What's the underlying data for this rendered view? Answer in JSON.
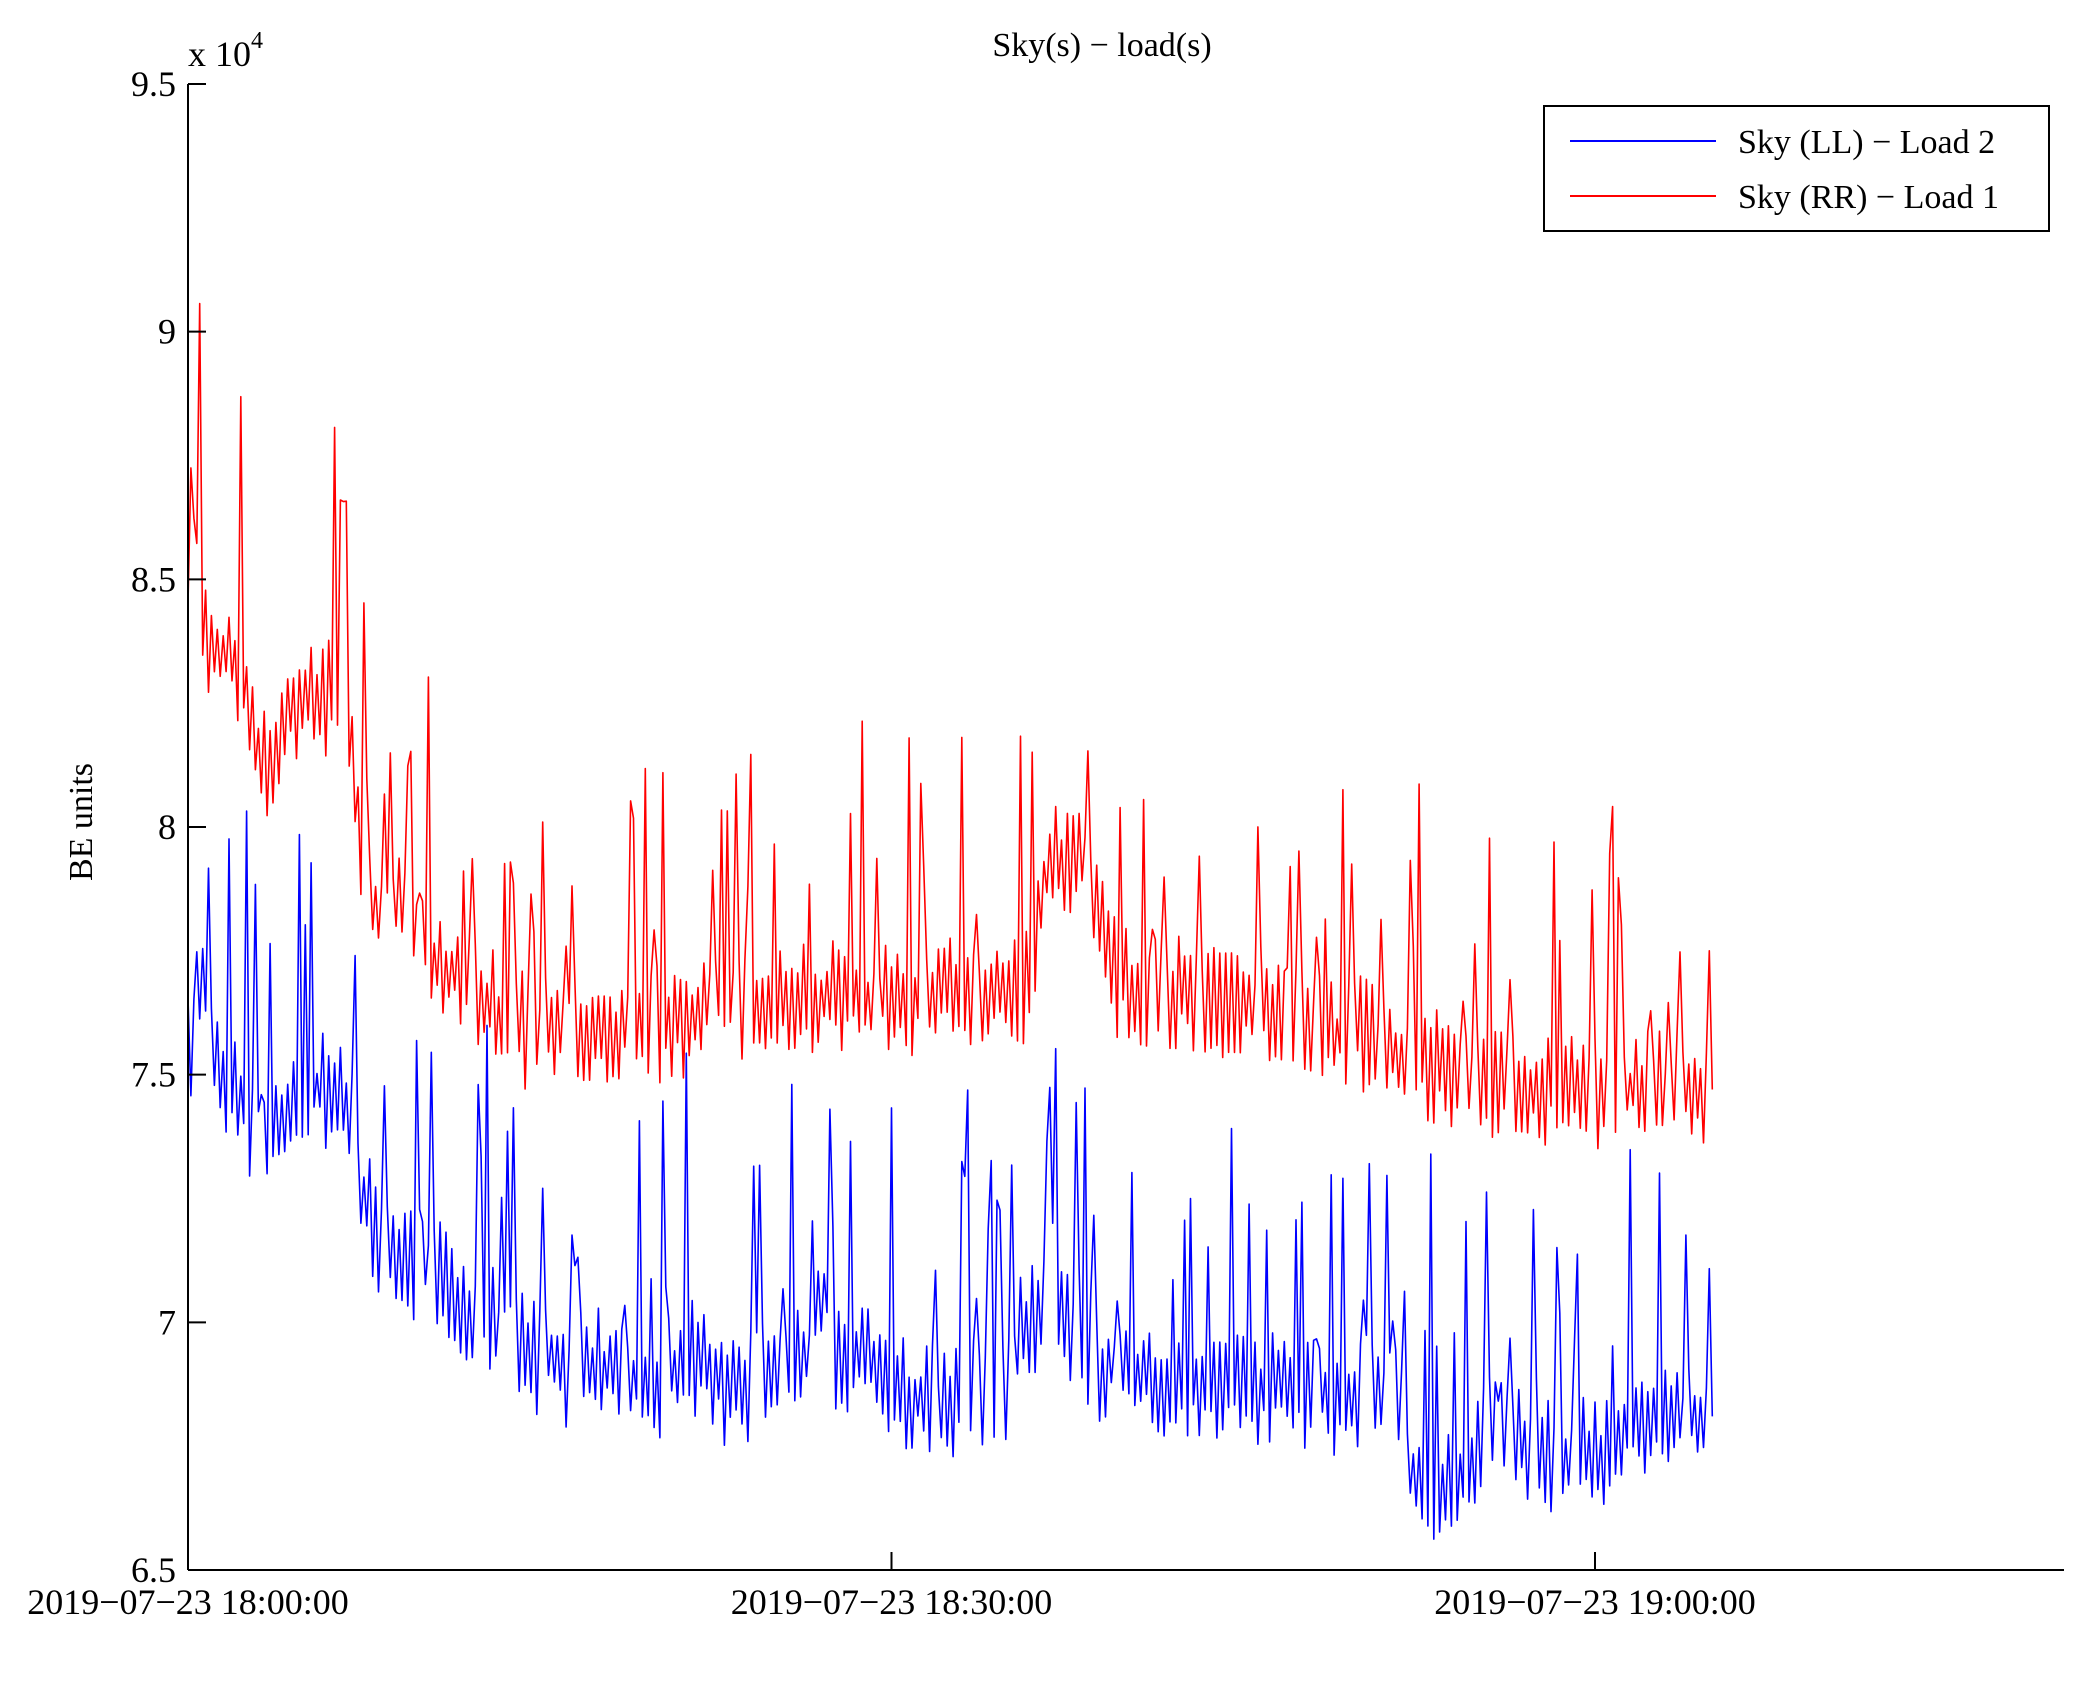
{
  "chart_data": {
    "type": "line",
    "title": "Sky(s) − load(s)",
    "ylabel": "BE units",
    "xlabel": "",
    "y_exponent_label": "x 10",
    "y_exponent_power": "4",
    "ylim": [
      65000,
      95000
    ],
    "y_ticks": [
      65000,
      70000,
      75000,
      80000,
      85000,
      90000,
      95000
    ],
    "y_tick_labels": [
      "6.5",
      "7",
      "7.5",
      "8",
      "8.5",
      "9",
      "9.5"
    ],
    "x_range_minutes": [
      0,
      80
    ],
    "x_ticks_minutes": [
      0,
      30,
      60
    ],
    "x_tick_labels": [
      "2019−07−23 18:00:00",
      "2019−07−23 18:30:00",
      "2019−07−23 19:00:00"
    ],
    "legend_position": "top-right",
    "sample_step_minutes": 0.5,
    "series": [
      {
        "name": "Sky (LL) − Load 2",
        "color": "#0000ff",
        "x_start_minutes": 0,
        "values": [
          75600,
          75400,
          75200,
          75000,
          74800,
          74300,
          73700,
          73500,
          74200,
          74700,
          74600,
          74700,
          74700,
          74700,
          74000,
          72500,
          71700,
          71800,
          71200,
          71200,
          71200,
          71200,
          70800,
          70400,
          70200,
          70100,
          70000,
          69800,
          69600,
          69300,
          69300,
          69400,
          69100,
          69000,
          69100,
          69100,
          69000,
          68900,
          68800,
          68800,
          68800,
          68900,
          69200,
          69300,
          69200,
          69000,
          68600,
          68600,
          68600,
          69100,
          69100,
          69200,
          69200,
          69300,
          69300,
          69300,
          69300,
          69300,
          69300,
          69300,
          68600,
          68600,
          68500,
          68500,
          68400,
          68400,
          68400,
          68500,
          68500,
          68400,
          68800,
          69800,
          70100,
          70100,
          70100,
          70000,
          69900,
          69400,
          69100,
          69100,
          68900,
          68900,
          68900,
          68900,
          68900,
          68700,
          68800,
          68800,
          68800,
          68800,
          68700,
          68700,
          68700,
          68700,
          68600,
          68500,
          68500,
          68500,
          68500,
          68500,
          68500,
          68600,
          68600,
          68600,
          67000,
          66800,
          66800,
          66800,
          66800,
          66800,
          67500,
          68200,
          67800,
          67600,
          67600,
          67700,
          67400,
          67300,
          67300,
          67300,
          67300,
          67300,
          67300,
          68000,
          68100,
          68100,
          68100,
          68100,
          68100,
          68100,
          68100
        ]
      },
      {
        "name": "Sky (RR) − Load 1",
        "color": "#ff0000",
        "x_start_minutes": 0,
        "values": [
          84200,
          84000,
          83700,
          83500,
          83300,
          82600,
          81400,
          81300,
          82300,
          82600,
          82500,
          82500,
          82600,
          82600,
          81500,
          79200,
          78300,
          78300,
          78400,
          78400,
          77600,
          77300,
          77100,
          77000,
          76800,
          76600,
          76400,
          76100,
          75900,
          75900,
          75900,
          75800,
          75800,
          75800,
          75800,
          75900,
          75900,
          75900,
          76000,
          76000,
          76000,
          76000,
          76000,
          76200,
          76600,
          76800,
          76400,
          76400,
          76400,
          76400,
          76400,
          76400,
          76500,
          76500,
          76500,
          76500,
          76500,
          76500,
          76500,
          76500,
          76500,
          76500,
          76500,
          76700,
          76700,
          76700,
          76700,
          76700,
          76700,
          76700,
          76700,
          76700,
          76700,
          79000,
          79300,
          79300,
          79300,
          79000,
          78500,
          77000,
          76800,
          76800,
          76700,
          76700,
          76700,
          76700,
          76600,
          76600,
          76500,
          76400,
          76400,
          76400,
          76400,
          76400,
          76300,
          76000,
          75800,
          75800,
          75800,
          75800,
          75800,
          75700,
          75500,
          75400,
          75300,
          75200,
          75200,
          75100,
          75100,
          75000,
          75000,
          74900,
          74800,
          74700,
          74700,
          74700,
          74700,
          74700,
          74700,
          74700,
          74700,
          74700,
          74700,
          74700,
          74700,
          74700,
          74700,
          74700,
          74700,
          74700,
          74700
        ]
      }
    ]
  }
}
